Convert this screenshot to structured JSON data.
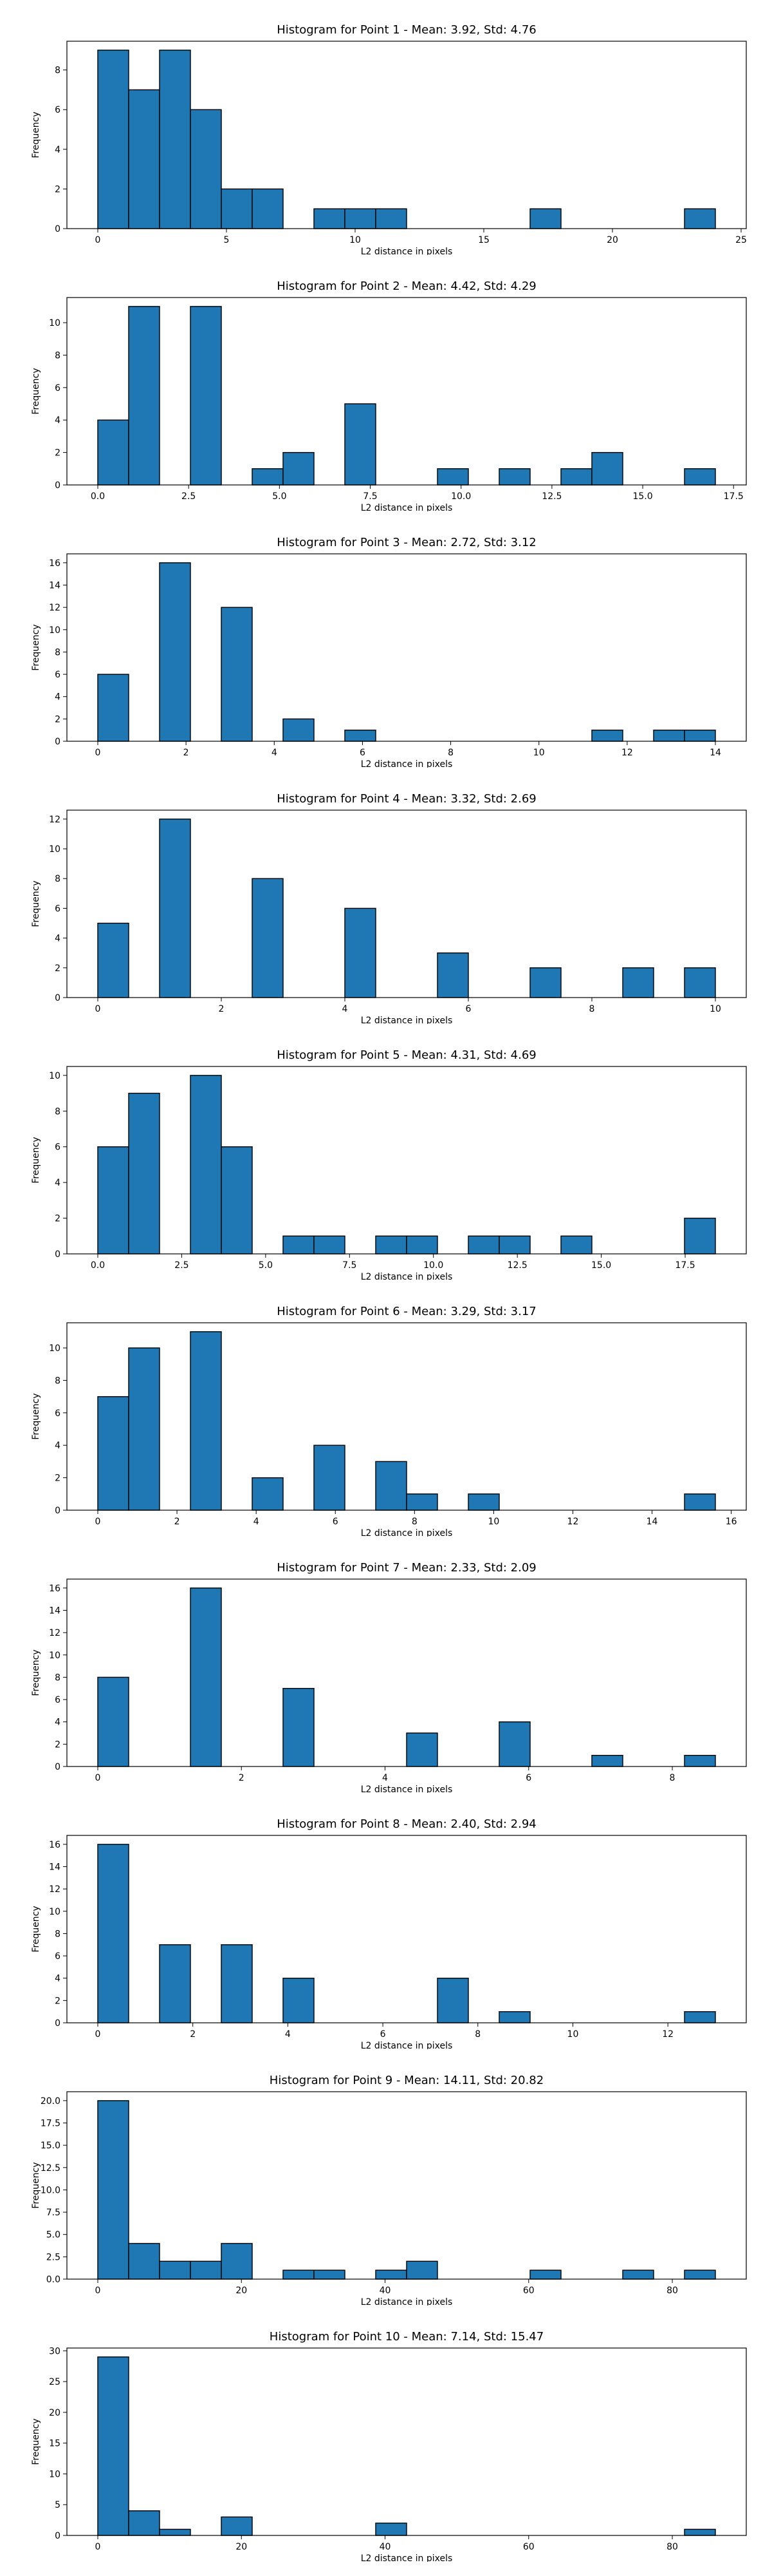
{
  "chart_data": [
    {
      "type": "bar",
      "title": "Histogram for Point 1 - Mean: 3.92, Std: 4.76",
      "xlabel": "L2 distance in pixels",
      "ylabel": "Frequency",
      "xlim": [
        -1.2,
        25.2
      ],
      "ylim": [
        0,
        9.45
      ],
      "xticks": [
        0,
        5,
        10,
        15,
        20,
        25
      ],
      "xtick_labels": [
        "0",
        "5",
        "10",
        "15",
        "20",
        "25"
      ],
      "yticks": [
        0,
        2,
        4,
        6,
        8
      ],
      "ytick_labels": [
        "0",
        "2",
        "4",
        "6",
        "8"
      ],
      "bins": [
        {
          "x0": 0,
          "x1": 1.2,
          "v": 9
        },
        {
          "x0": 1.2,
          "x1": 2.4,
          "v": 7
        },
        {
          "x0": 2.4,
          "x1": 3.6,
          "v": 9
        },
        {
          "x0": 3.6,
          "x1": 4.8,
          "v": 6
        },
        {
          "x0": 4.8,
          "x1": 6.0,
          "v": 2
        },
        {
          "x0": 6.0,
          "x1": 7.2,
          "v": 2
        },
        {
          "x0": 8.4,
          "x1": 9.6,
          "v": 1
        },
        {
          "x0": 9.6,
          "x1": 10.8,
          "v": 1
        },
        {
          "x0": 10.8,
          "x1": 12.0,
          "v": 1
        },
        {
          "x0": 16.8,
          "x1": 18.0,
          "v": 1
        },
        {
          "x0": 22.8,
          "x1": 24.0,
          "v": 1
        }
      ]
    },
    {
      "type": "bar",
      "title": "Histogram for Point 2 - Mean: 4.42, Std: 4.29",
      "xlabel": "L2 distance in pixels",
      "ylabel": "Frequency",
      "xlim": [
        -0.85,
        17.85
      ],
      "ylim": [
        0,
        11.55
      ],
      "xticks": [
        0,
        2.5,
        5,
        7.5,
        10,
        12.5,
        15,
        17.5
      ],
      "xtick_labels": [
        "0.0",
        "2.5",
        "5.0",
        "7.5",
        "10.0",
        "12.5",
        "15.0",
        "17.5"
      ],
      "yticks": [
        0,
        2,
        4,
        6,
        8,
        10
      ],
      "ytick_labels": [
        "0",
        "2",
        "4",
        "6",
        "8",
        "10"
      ],
      "bins": [
        {
          "x0": 0,
          "x1": 0.85,
          "v": 4
        },
        {
          "x0": 0.85,
          "x1": 1.7,
          "v": 11
        },
        {
          "x0": 2.55,
          "x1": 3.4,
          "v": 11
        },
        {
          "x0": 4.25,
          "x1": 5.1,
          "v": 1
        },
        {
          "x0": 5.1,
          "x1": 5.95,
          "v": 2
        },
        {
          "x0": 6.8,
          "x1": 7.65,
          "v": 5
        },
        {
          "x0": 9.35,
          "x1": 10.2,
          "v": 1
        },
        {
          "x0": 11.05,
          "x1": 11.9,
          "v": 1
        },
        {
          "x0": 12.75,
          "x1": 13.6,
          "v": 1
        },
        {
          "x0": 13.6,
          "x1": 14.45,
          "v": 2
        },
        {
          "x0": 16.15,
          "x1": 17.0,
          "v": 1
        }
      ]
    },
    {
      "type": "bar",
      "title": "Histogram for Point 3 - Mean: 2.72, Std: 3.12",
      "xlabel": "L2 distance in pixels",
      "ylabel": "Frequency",
      "xlim": [
        -0.7,
        14.7
      ],
      "ylim": [
        0,
        16.8
      ],
      "xticks": [
        0,
        2,
        4,
        6,
        8,
        10,
        12,
        14
      ],
      "xtick_labels": [
        "0",
        "2",
        "4",
        "6",
        "8",
        "10",
        "12",
        "14"
      ],
      "yticks": [
        0,
        2,
        4,
        6,
        8,
        10,
        12,
        14,
        16
      ],
      "ytick_labels": [
        "0",
        "2",
        "4",
        "6",
        "8",
        "10",
        "12",
        "14",
        "16"
      ],
      "bins": [
        {
          "x0": 0,
          "x1": 0.7,
          "v": 6
        },
        {
          "x0": 1.4,
          "x1": 2.1,
          "v": 16
        },
        {
          "x0": 2.8,
          "x1": 3.5,
          "v": 12
        },
        {
          "x0": 4.2,
          "x1": 4.9,
          "v": 2
        },
        {
          "x0": 5.6,
          "x1": 6.3,
          "v": 1
        },
        {
          "x0": 11.2,
          "x1": 11.9,
          "v": 1
        },
        {
          "x0": 12.6,
          "x1": 13.3,
          "v": 1
        },
        {
          "x0": 13.3,
          "x1": 14.0,
          "v": 1
        }
      ]
    },
    {
      "type": "bar",
      "title": "Histogram for Point 4 - Mean: 3.32, Std: 2.69",
      "xlabel": "L2 distance in pixels",
      "ylabel": "Frequency",
      "xlim": [
        -0.5,
        10.5
      ],
      "ylim": [
        0,
        12.6
      ],
      "xticks": [
        0,
        2,
        4,
        6,
        8,
        10
      ],
      "xtick_labels": [
        "0",
        "2",
        "4",
        "6",
        "8",
        "10"
      ],
      "yticks": [
        0,
        2,
        4,
        6,
        8,
        10,
        12
      ],
      "ytick_labels": [
        "0",
        "2",
        "4",
        "6",
        "8",
        "10",
        "12"
      ],
      "bins": [
        {
          "x0": 0,
          "x1": 0.5,
          "v": 5
        },
        {
          "x0": 1.0,
          "x1": 1.5,
          "v": 12
        },
        {
          "x0": 2.5,
          "x1": 3.0,
          "v": 8
        },
        {
          "x0": 4.0,
          "x1": 4.5,
          "v": 6
        },
        {
          "x0": 5.5,
          "x1": 6.0,
          "v": 3
        },
        {
          "x0": 7.0,
          "x1": 7.5,
          "v": 2
        },
        {
          "x0": 8.5,
          "x1": 9.0,
          "v": 2
        },
        {
          "x0": 9.5,
          "x1": 10.0,
          "v": 2
        }
      ]
    },
    {
      "type": "bar",
      "title": "Histogram for Point 5 - Mean: 4.31, Std: 4.69",
      "xlabel": "L2 distance in pixels",
      "ylabel": "Frequency",
      "xlim": [
        -0.92,
        19.32
      ],
      "ylim": [
        0,
        10.5
      ],
      "xticks": [
        0,
        2.5,
        5,
        7.5,
        10,
        12.5,
        15,
        17.5
      ],
      "xtick_labels": [
        "0.0",
        "2.5",
        "5.0",
        "7.5",
        "10.0",
        "12.5",
        "15.0",
        "17.5"
      ],
      "yticks": [
        0,
        2,
        4,
        6,
        8,
        10
      ],
      "ytick_labels": [
        "0",
        "2",
        "4",
        "6",
        "8",
        "10"
      ],
      "bins": [
        {
          "x0": 0,
          "x1": 0.92,
          "v": 6
        },
        {
          "x0": 0.92,
          "x1": 1.84,
          "v": 9
        },
        {
          "x0": 2.76,
          "x1": 3.68,
          "v": 10
        },
        {
          "x0": 3.68,
          "x1": 4.6,
          "v": 6
        },
        {
          "x0": 5.52,
          "x1": 6.44,
          "v": 1
        },
        {
          "x0": 6.44,
          "x1": 7.36,
          "v": 1
        },
        {
          "x0": 8.28,
          "x1": 9.2,
          "v": 1
        },
        {
          "x0": 9.2,
          "x1": 10.12,
          "v": 1
        },
        {
          "x0": 11.04,
          "x1": 11.96,
          "v": 1
        },
        {
          "x0": 11.96,
          "x1": 12.88,
          "v": 1
        },
        {
          "x0": 13.8,
          "x1": 14.72,
          "v": 1
        },
        {
          "x0": 17.48,
          "x1": 18.4,
          "v": 2
        }
      ]
    },
    {
      "type": "bar",
      "title": "Histogram for Point 6 - Mean: 3.29, Std: 3.17",
      "xlabel": "L2 distance in pixels",
      "ylabel": "Frequency",
      "xlim": [
        -0.78,
        16.38
      ],
      "ylim": [
        0,
        11.55
      ],
      "xticks": [
        0,
        2,
        4,
        6,
        8,
        10,
        12,
        14,
        16
      ],
      "xtick_labels": [
        "0",
        "2",
        "4",
        "6",
        "8",
        "10",
        "12",
        "14",
        "16"
      ],
      "yticks": [
        0,
        2,
        4,
        6,
        8,
        10
      ],
      "ytick_labels": [
        "0",
        "2",
        "4",
        "6",
        "8",
        "10"
      ],
      "bins": [
        {
          "x0": 0,
          "x1": 0.78,
          "v": 7
        },
        {
          "x0": 0.78,
          "x1": 1.56,
          "v": 10
        },
        {
          "x0": 2.34,
          "x1": 3.12,
          "v": 11
        },
        {
          "x0": 3.9,
          "x1": 4.68,
          "v": 2
        },
        {
          "x0": 5.46,
          "x1": 6.24,
          "v": 4
        },
        {
          "x0": 7.02,
          "x1": 7.8,
          "v": 3
        },
        {
          "x0": 7.8,
          "x1": 8.58,
          "v": 1
        },
        {
          "x0": 9.36,
          "x1": 10.14,
          "v": 1
        },
        {
          "x0": 14.82,
          "x1": 15.6,
          "v": 1
        }
      ]
    },
    {
      "type": "bar",
      "title": "Histogram for Point 7 - Mean: 2.33, Std: 2.09",
      "xlabel": "L2 distance in pixels",
      "ylabel": "Frequency",
      "xlim": [
        -0.43,
        9.03
      ],
      "ylim": [
        0,
        16.8
      ],
      "xticks": [
        0,
        2,
        4,
        6,
        8
      ],
      "xtick_labels": [
        "0",
        "2",
        "4",
        "6",
        "8"
      ],
      "yticks": [
        0,
        2,
        4,
        6,
        8,
        10,
        12,
        14,
        16
      ],
      "ytick_labels": [
        "0",
        "2",
        "4",
        "6",
        "8",
        "10",
        "12",
        "14",
        "16"
      ],
      "bins": [
        {
          "x0": 0,
          "x1": 0.43,
          "v": 8
        },
        {
          "x0": 1.29,
          "x1": 1.72,
          "v": 16
        },
        {
          "x0": 2.58,
          "x1": 3.01,
          "v": 7
        },
        {
          "x0": 4.3,
          "x1": 4.73,
          "v": 3
        },
        {
          "x0": 5.59,
          "x1": 6.02,
          "v": 4
        },
        {
          "x0": 6.88,
          "x1": 7.31,
          "v": 1
        },
        {
          "x0": 8.17,
          "x1": 8.6,
          "v": 1
        }
      ]
    },
    {
      "type": "bar",
      "title": "Histogram for Point 8 - Mean: 2.40, Std: 2.94",
      "xlabel": "L2 distance in pixels",
      "ylabel": "Frequency",
      "xlim": [
        -0.65,
        13.65
      ],
      "ylim": [
        0,
        16.8
      ],
      "xticks": [
        0,
        2,
        4,
        6,
        8,
        10,
        12
      ],
      "xtick_labels": [
        "0",
        "2",
        "4",
        "6",
        "8",
        "10",
        "12"
      ],
      "yticks": [
        0,
        2,
        4,
        6,
        8,
        10,
        12,
        14,
        16
      ],
      "ytick_labels": [
        "0",
        "2",
        "4",
        "6",
        "8",
        "10",
        "12",
        "14",
        "16"
      ],
      "bins": [
        {
          "x0": 0,
          "x1": 0.65,
          "v": 16
        },
        {
          "x0": 1.3,
          "x1": 1.95,
          "v": 7
        },
        {
          "x0": 2.6,
          "x1": 3.25,
          "v": 7
        },
        {
          "x0": 3.9,
          "x1": 4.55,
          "v": 4
        },
        {
          "x0": 7.15,
          "x1": 7.8,
          "v": 4
        },
        {
          "x0": 8.45,
          "x1": 9.1,
          "v": 1
        },
        {
          "x0": 12.35,
          "x1": 13.0,
          "v": 1
        }
      ]
    },
    {
      "type": "bar",
      "title": "Histogram for Point 9 - Mean: 14.11, Std: 20.82",
      "xlabel": "L2 distance in pixels",
      "ylabel": "Frequency",
      "xlim": [
        -4.3,
        90.3
      ],
      "ylim": [
        0,
        21
      ],
      "xticks": [
        0,
        20,
        40,
        60,
        80
      ],
      "xtick_labels": [
        "0",
        "20",
        "40",
        "60",
        "80"
      ],
      "yticks": [
        0,
        2.5,
        5,
        7.5,
        10,
        12.5,
        15,
        17.5,
        20
      ],
      "ytick_labels": [
        "0.0",
        "2.5",
        "5.0",
        "7.5",
        "10.0",
        "12.5",
        "15.0",
        "17.5",
        "20.0"
      ],
      "bins": [
        {
          "x0": 0,
          "x1": 4.3,
          "v": 20
        },
        {
          "x0": 4.3,
          "x1": 8.6,
          "v": 4
        },
        {
          "x0": 8.6,
          "x1": 12.9,
          "v": 2
        },
        {
          "x0": 12.9,
          "x1": 17.2,
          "v": 2
        },
        {
          "x0": 17.2,
          "x1": 21.5,
          "v": 4
        },
        {
          "x0": 25.8,
          "x1": 30.1,
          "v": 1
        },
        {
          "x0": 30.1,
          "x1": 34.4,
          "v": 1
        },
        {
          "x0": 38.7,
          "x1": 43.0,
          "v": 1
        },
        {
          "x0": 43.0,
          "x1": 47.3,
          "v": 2
        },
        {
          "x0": 60.2,
          "x1": 64.5,
          "v": 1
        },
        {
          "x0": 73.1,
          "x1": 77.4,
          "v": 1
        },
        {
          "x0": 81.7,
          "x1": 86.0,
          "v": 1
        }
      ]
    },
    {
      "type": "bar",
      "title": "Histogram for Point 10 - Mean: 7.14, Std: 15.47",
      "xlabel": "L2 distance in pixels",
      "ylabel": "Frequency",
      "xlim": [
        -4.3,
        90.3
      ],
      "ylim": [
        0,
        30.45
      ],
      "xticks": [
        0,
        20,
        40,
        60,
        80
      ],
      "xtick_labels": [
        "0",
        "20",
        "40",
        "60",
        "80"
      ],
      "yticks": [
        0,
        5,
        10,
        15,
        20,
        25,
        30
      ],
      "ytick_labels": [
        "0",
        "5",
        "10",
        "15",
        "20",
        "25",
        "30"
      ],
      "bins": [
        {
          "x0": 0,
          "x1": 4.3,
          "v": 29
        },
        {
          "x0": 4.3,
          "x1": 8.6,
          "v": 4
        },
        {
          "x0": 8.6,
          "x1": 12.9,
          "v": 1
        },
        {
          "x0": 17.2,
          "x1": 21.5,
          "v": 3
        },
        {
          "x0": 38.7,
          "x1": 43.0,
          "v": 2
        },
        {
          "x0": 81.7,
          "x1": 86.0,
          "v": 1
        }
      ]
    }
  ]
}
